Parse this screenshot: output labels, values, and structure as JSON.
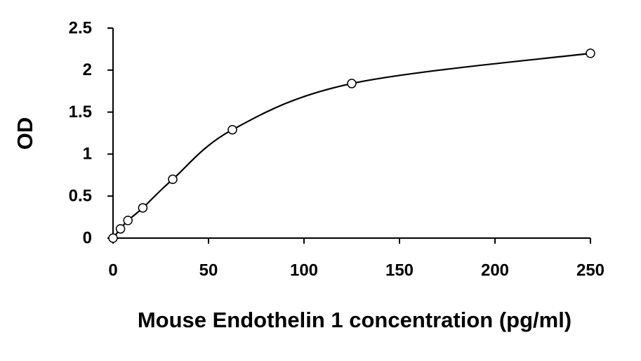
{
  "chart_data": {
    "type": "scatter",
    "x_label": "Mouse Endothelin 1 concentration (pg/ml)",
    "y_label": "OD",
    "x": [
      0,
      3.9,
      7.8,
      15.6,
      31.25,
      62.5,
      125,
      250
    ],
    "values": [
      0,
      0.11,
      0.21,
      0.36,
      0.7,
      1.29,
      1.84,
      2.2
    ],
    "color": "#000000",
    "smooth_line": true,
    "xlim": [
      0,
      250
    ],
    "xticks": [
      0,
      50,
      100,
      150,
      200,
      250
    ],
    "ylim": [
      0,
      2.5
    ],
    "yticks": [
      0,
      0.5,
      1,
      1.5,
      2,
      2.5
    ],
    "grid": false
  }
}
